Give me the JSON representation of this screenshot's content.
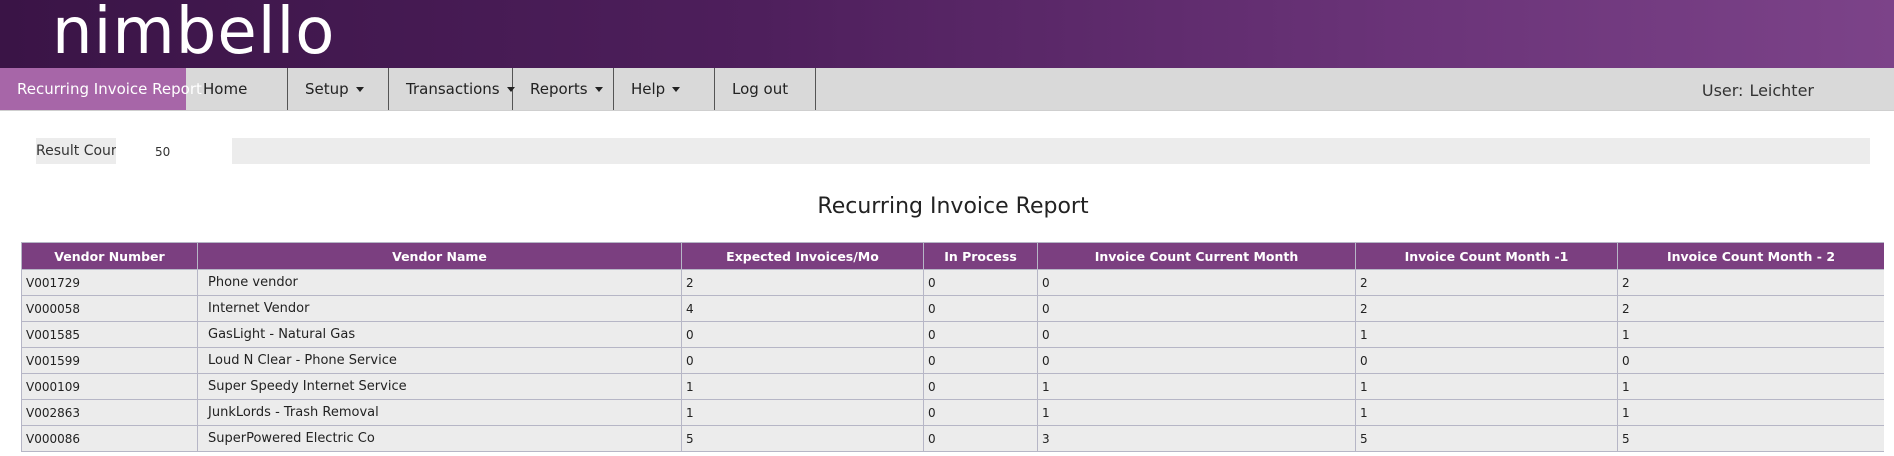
{
  "app": {
    "logo_text": "nimbello"
  },
  "nav": {
    "active": "Recurring Invoice Report",
    "items": [
      {
        "label": "Home",
        "dropdown": false
      },
      {
        "label": "Setup",
        "dropdown": true
      },
      {
        "label": "Transactions",
        "dropdown": true
      },
      {
        "label": "Reports",
        "dropdown": true
      },
      {
        "label": "Help",
        "dropdown": true
      },
      {
        "label": "Log out",
        "dropdown": false
      }
    ],
    "user_label": "User:",
    "user_name": "Leichter"
  },
  "result": {
    "label": "Result Count",
    "value": "50"
  },
  "report": {
    "title": "Recurring Invoice Report",
    "columns": [
      "Vendor Number",
      "Vendor Name",
      "Expected Invoices/Mo",
      "In Process",
      "Invoice Count Current Month",
      "Invoice Count Month -1",
      "Invoice Count Month - 2"
    ],
    "rows": [
      [
        "V001729",
        "Phone vendor",
        "2",
        "0",
        "0",
        "2",
        "2"
      ],
      [
        "V000058",
        "Internet Vendor",
        "4",
        "0",
        "0",
        "2",
        "2"
      ],
      [
        "V001585",
        "GasLight - Natural Gas",
        "0",
        "0",
        "0",
        "1",
        "1"
      ],
      [
        "V001599",
        "Loud N Clear - Phone Service",
        "0",
        "0",
        "0",
        "0",
        "0"
      ],
      [
        "V000109",
        "Super Speedy Internet Service",
        "1",
        "0",
        "1",
        "1",
        "1"
      ],
      [
        "V002863",
        "JunkLords - Trash Removal",
        "1",
        "0",
        "1",
        "1",
        "1"
      ],
      [
        "V000086",
        "SuperPowered Electric Co",
        "5",
        "0",
        "3",
        "5",
        "5"
      ]
    ]
  },
  "colors": {
    "header_dark": "#3a1446",
    "header_light": "#7c4389",
    "active_tab": "#a766a8",
    "table_header": "#7b3f80"
  }
}
